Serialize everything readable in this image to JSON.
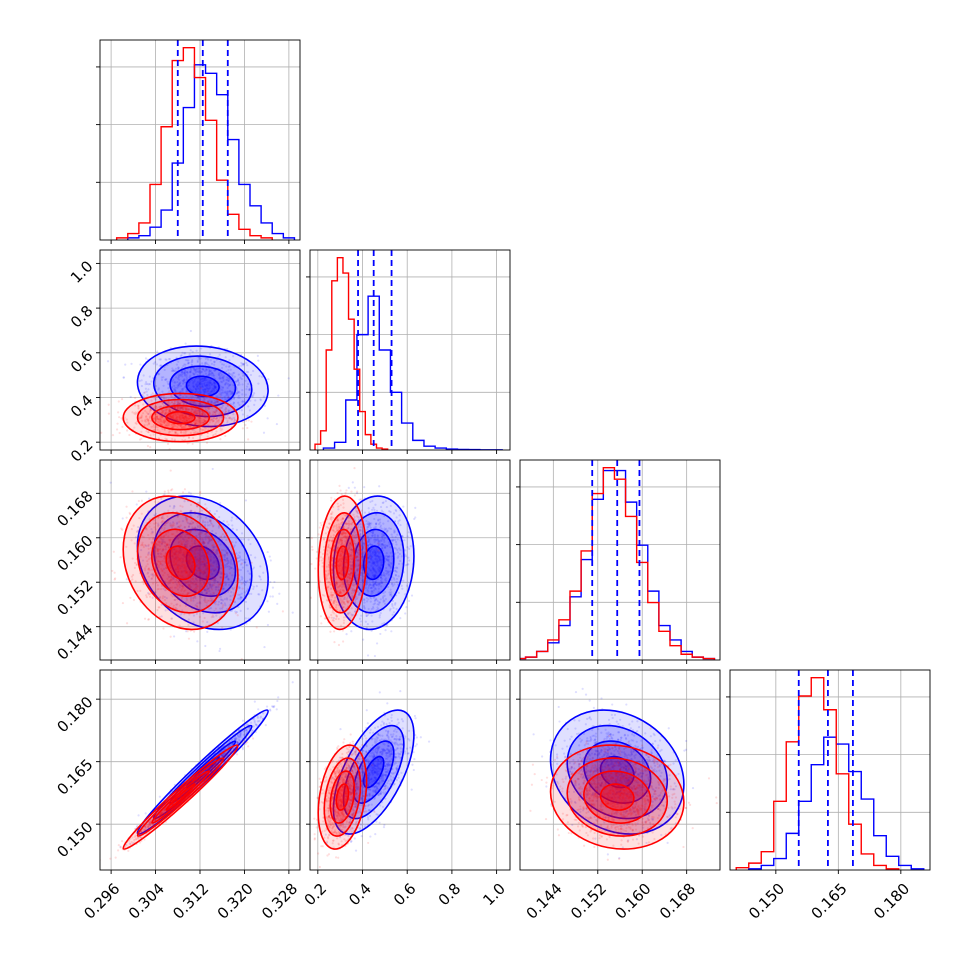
{
  "chart_data": {
    "type": "corner",
    "grid": true,
    "colors": {
      "series_a": "#0000ff",
      "series_b": "#ff0000",
      "quantile_lines": "#0000ff"
    },
    "parameters": [
      {
        "id": "p0",
        "range": [
          0.294,
          0.33
        ],
        "ticks": [
          0.296,
          0.304,
          0.312,
          0.32,
          0.328
        ],
        "tick_labels": [
          "0.296",
          "0.304",
          "0.312",
          "0.320",
          "0.328"
        ]
      },
      {
        "id": "p1",
        "range": [
          0.165,
          1.06
        ],
        "ticks": [
          0.2,
          0.4,
          0.6,
          0.8,
          1.0
        ],
        "tick_labels": [
          "0.2",
          "0.4",
          "0.6",
          "0.8",
          "1.0"
        ]
      },
      {
        "id": "p2",
        "range": [
          0.138,
          0.174
        ],
        "ticks": [
          0.144,
          0.152,
          0.16,
          0.168
        ],
        "tick_labels": [
          "0.144",
          "0.152",
          "0.160",
          "0.168"
        ]
      },
      {
        "id": "p3",
        "range": [
          0.139,
          0.187
        ],
        "ticks": [
          0.15,
          0.165,
          0.18
        ],
        "tick_labels": [
          "0.150",
          "0.165",
          "0.180"
        ]
      }
    ],
    "series": [
      {
        "color_key": "series_a",
        "marginals": [
          {
            "x": [
              0.3,
              0.302,
              0.304,
              0.306,
              0.308,
              0.31,
              0.312,
              0.314,
              0.316,
              0.318,
              0.32,
              0.322,
              0.324,
              0.326,
              0.328
            ],
            "y": [
              0.01,
              0.02,
              0.06,
              0.14,
              0.36,
              0.62,
              0.82,
              0.78,
              0.68,
              0.47,
              0.26,
              0.16,
              0.08,
              0.03,
              0.01
            ]
          },
          {
            "x": [
              0.25,
              0.3,
              0.35,
              0.4,
              0.45,
              0.5,
              0.55,
              0.6,
              0.65,
              0.7,
              0.75,
              0.8,
              0.85,
              0.9,
              0.95,
              1.0
            ],
            "y": [
              0.01,
              0.04,
              0.26,
              0.6,
              0.8,
              0.52,
              0.3,
              0.14,
              0.05,
              0.02,
              0.01,
              0.005,
              0.003,
              0.002,
              0.001,
              0.001
            ]
          },
          {
            "x": [
              0.138,
              0.14,
              0.142,
              0.144,
              0.146,
              0.148,
              0.15,
              0.152,
              0.154,
              0.156,
              0.158,
              0.16,
              0.162,
              0.164,
              0.166,
              0.168,
              0.17,
              0.172
            ],
            "y": [
              0.005,
              0.01,
              0.03,
              0.06,
              0.12,
              0.22,
              0.35,
              0.56,
              0.66,
              0.66,
              0.55,
              0.4,
              0.24,
              0.12,
              0.07,
              0.03,
              0.01,
              0.005
            ]
          },
          {
            "x": [
              0.145,
              0.148,
              0.151,
              0.154,
              0.157,
              0.16,
              0.163,
              0.166,
              0.169,
              0.172,
              0.175,
              0.178,
              0.181,
              0.184
            ],
            "y": [
              0.005,
              0.02,
              0.05,
              0.16,
              0.3,
              0.46,
              0.58,
              0.55,
              0.43,
              0.31,
              0.15,
              0.06,
              0.02,
              0.005
            ]
          }
        ],
        "quantiles": [
          [
            0.308,
            0.3125,
            0.317
          ],
          [
            0.38,
            0.45,
            0.53
          ],
          [
            0.151,
            0.1555,
            0.1595
          ],
          [
            0.1555,
            0.1625,
            0.1685
          ]
        ],
        "centers": [
          0.3125,
          0.45,
          0.1555,
          0.1625
        ]
      },
      {
        "color_key": "series_b",
        "marginals": [
          {
            "x": [
              0.298,
              0.3,
              0.302,
              0.304,
              0.306,
              0.308,
              0.31,
              0.312,
              0.314,
              0.316,
              0.318,
              0.32,
              0.322,
              0.324
            ],
            "y": [
              0.01,
              0.03,
              0.08,
              0.26,
              0.53,
              0.84,
              0.9,
              0.76,
              0.56,
              0.28,
              0.12,
              0.05,
              0.02,
              0.01
            ]
          },
          {
            "x": [
              0.2,
              0.225,
              0.25,
              0.275,
              0.3,
              0.325,
              0.35,
              0.375,
              0.4,
              0.425,
              0.45,
              0.475,
              0.5
            ],
            "y": [
              0.03,
              0.1,
              0.52,
              0.88,
              1.0,
              0.92,
              0.68,
              0.42,
              0.2,
              0.08,
              0.03,
              0.01,
              0.005
            ]
          },
          {
            "x": [
              0.138,
              0.14,
              0.142,
              0.144,
              0.146,
              0.148,
              0.15,
              0.152,
              0.154,
              0.156,
              0.158,
              0.16,
              0.162,
              0.164,
              0.166,
              0.168,
              0.17,
              0.172
            ],
            "y": [
              0.005,
              0.01,
              0.03,
              0.07,
              0.14,
              0.24,
              0.38,
              0.58,
              0.67,
              0.63,
              0.5,
              0.34,
              0.2,
              0.1,
              0.05,
              0.02,
              0.01,
              0.005
            ]
          },
          {
            "x": [
              0.142,
              0.145,
              0.148,
              0.151,
              0.154,
              0.157,
              0.16,
              0.163,
              0.166,
              0.169,
              0.172,
              0.175,
              0.178
            ],
            "y": [
              0.01,
              0.03,
              0.08,
              0.3,
              0.56,
              0.76,
              0.84,
              0.7,
              0.42,
              0.2,
              0.07,
              0.02,
              0.005
            ]
          }
        ],
        "centers": [
          0.3085,
          0.31,
          0.1555,
          0.1565
        ]
      }
    ],
    "correlations": {
      "series_a": {
        "1-0": -0.1,
        "2-0": -0.25,
        "2-1": 0.1,
        "3-0": 0.98,
        "3-1": 0.6,
        "3-2": -0.2
      },
      "series_b": {
        "1-0": 0.0,
        "2-0": -0.2,
        "2-1": 0.1,
        "3-0": 0.98,
        "3-1": 0.3,
        "3-2": -0.1
      }
    },
    "spreads": {
      "series_a": [
        0.0049,
        0.075,
        0.005,
        0.0062
      ],
      "series_b": [
        0.0043,
        0.045,
        0.005,
        0.0052
      ]
    }
  }
}
